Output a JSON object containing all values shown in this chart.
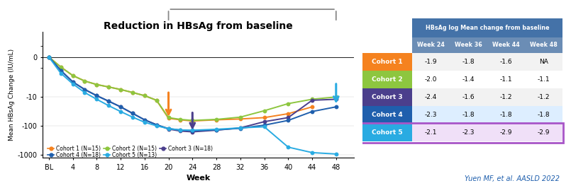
{
  "title": "Reduction in HBsAg from baseline",
  "xlabel": "Week",
  "ylabel": "Mean HBsAg Change (IU/mL)",
  "cohort_names": [
    "Cohort 1",
    "Cohort 2",
    "Cohort 3",
    "Cohort 4",
    "Cohort 5"
  ],
  "cohort_N": [
    15,
    15,
    18,
    18,
    13
  ],
  "cohort_colors": [
    "#F5821F",
    "#8DC63F",
    "#4B3F8C",
    "#1F5FAD",
    "#29ABE2"
  ],
  "cohort_data": {
    "Cohort 1": {
      "weeks": [
        0,
        2,
        4,
        6,
        8,
        10,
        12,
        14,
        16,
        18,
        20,
        22,
        24,
        28,
        32,
        36,
        40,
        44
      ],
      "values": [
        0,
        -0.9,
        -1.8,
        -2.8,
        -3.7,
        -4.5,
        -5.5,
        -7,
        -9,
        -13,
        -55,
        -62,
        -68,
        -62,
        -58,
        -52,
        -38,
        -22
      ]
    },
    "Cohort 2": {
      "weeks": [
        0,
        2,
        4,
        6,
        8,
        10,
        12,
        14,
        16,
        18,
        20,
        22,
        24,
        28,
        32,
        36,
        40,
        44,
        48
      ],
      "values": [
        0,
        -0.9,
        -1.8,
        -2.8,
        -3.7,
        -4.5,
        -5.5,
        -7,
        -9,
        -13,
        -52,
        -60,
        -65,
        -60,
        -50,
        -30,
        -17,
        -12,
        -10
      ]
    },
    "Cohort 3": {
      "weeks": [
        0,
        2,
        4,
        6,
        8,
        10,
        12,
        14,
        16,
        18,
        20,
        22,
        24,
        28,
        32,
        36,
        40,
        44,
        48
      ],
      "values": [
        0,
        -1.2,
        -3,
        -5.5,
        -9,
        -14,
        -22,
        -37,
        -62,
        -92,
        -130,
        -152,
        -162,
        -142,
        -118,
        -72,
        -52,
        -13,
        -12
      ]
    },
    "Cohort 4": {
      "weeks": [
        0,
        2,
        4,
        6,
        8,
        10,
        12,
        14,
        16,
        18,
        20,
        22,
        24,
        28,
        32,
        36,
        40,
        44,
        48
      ],
      "values": [
        0,
        -1.2,
        -3,
        -5.5,
        -9,
        -14,
        -22,
        -37,
        -62,
        -92,
        -125,
        -140,
        -148,
        -138,
        -122,
        -95,
        -65,
        -32,
        -22
      ]
    },
    "Cohort 5": {
      "weeks": [
        0,
        2,
        4,
        6,
        8,
        10,
        12,
        14,
        16,
        18,
        20,
        22,
        24,
        28,
        32,
        36,
        40,
        44,
        48
      ],
      "values": [
        0,
        -1.5,
        -3.5,
        -7,
        -12,
        -20,
        -32,
        -50,
        -75,
        -100,
        -125,
        -140,
        -142,
        -132,
        -118,
        -108,
        -550,
        -850,
        -950
      ]
    }
  },
  "xtick_positions": [
    0,
    4,
    8,
    12,
    16,
    20,
    24,
    28,
    32,
    36,
    40,
    44,
    48
  ],
  "xtick_labels": [
    "BL",
    "4",
    "8",
    "12",
    "16",
    "20",
    "24",
    "28",
    "32",
    "36",
    "40",
    "44",
    "48"
  ],
  "ytick_positions": [
    0,
    -10,
    -100,
    -1000
  ],
  "ytick_labels": [
    "0",
    "-10",
    "-100",
    "-1000"
  ],
  "ylim": [
    -1300,
    3
  ],
  "xlim": [
    -1,
    51
  ],
  "arrow_orange_week": 20,
  "arrow_purple_week": 24,
  "arrow_cyan_week": 48,
  "table_header": "HBsAg log Mean change from baseline",
  "table_cols": [
    "Week 24",
    "Week 36",
    "Week 44",
    "Week 48"
  ],
  "table_data": {
    "Cohort 1": [
      "-1.9",
      "-1.8",
      "-1.6",
      "NA"
    ],
    "Cohort 2": [
      "-2.0",
      "-1.4",
      "-1.1",
      "-1.1"
    ],
    "Cohort 3": [
      "-2.4",
      "-1.6",
      "-1.2",
      "-1.2"
    ],
    "Cohort 4": [
      "-2.3",
      "-1.8",
      "-1.8",
      "-1.8"
    ],
    "Cohort 5": [
      "-2.1",
      "-2.3",
      "-2.9",
      "-2.9"
    ]
  },
  "table_header_color": "#4472A8",
  "table_subheader_color": "#6B8DB5",
  "row_bg_colors": [
    "#F2F2F2",
    "#FFFFFF",
    "#F2F2F2",
    "#DDEEFF",
    "#F0E0F8"
  ],
  "cohort5_border_color": "#A855C8",
  "citation": "Yuen MF, et al. AASLD 2022",
  "citation_color": "#1F5FAD"
}
